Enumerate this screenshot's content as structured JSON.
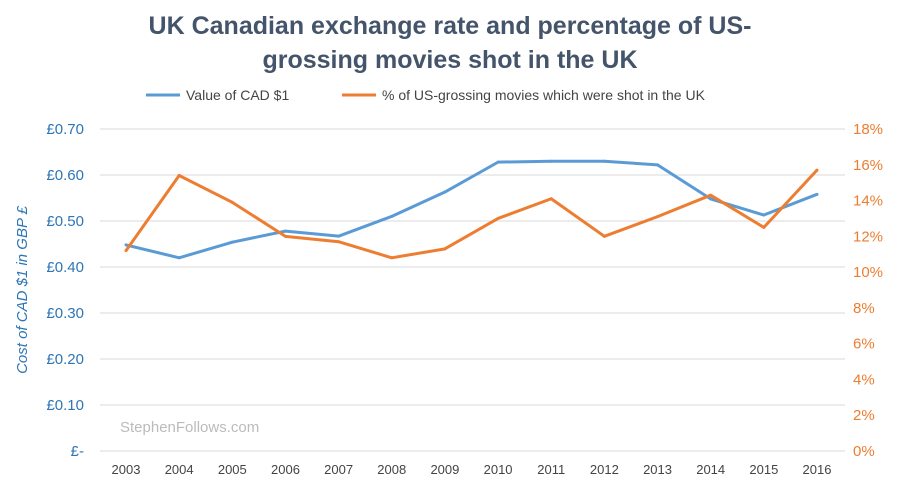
{
  "chart_data": {
    "type": "line",
    "title_lines": [
      "UK Canadian exchange rate and percentage of US-",
      "grossing movies shot in the UK"
    ],
    "categories": [
      "2003",
      "2004",
      "2005",
      "2006",
      "2007",
      "2008",
      "2009",
      "2010",
      "2011",
      "2012",
      "2013",
      "2014",
      "2015",
      "2016"
    ],
    "series": [
      {
        "name": "Value of CAD $1",
        "axis": "left",
        "color": "#5b9bd5",
        "values": [
          0.448,
          0.42,
          0.454,
          0.478,
          0.467,
          0.51,
          0.563,
          0.628,
          0.63,
          0.63,
          0.622,
          0.548,
          0.513,
          0.558
        ]
      },
      {
        "name": "% of US-grossing movies which were shot in the UK",
        "axis": "right",
        "color": "#ed7d31",
        "values": [
          11.2,
          15.4,
          13.9,
          12.0,
          11.7,
          10.8,
          11.3,
          13.0,
          14.1,
          12.0,
          13.1,
          14.3,
          12.5,
          15.7
        ]
      }
    ],
    "ylabel": "Cost of CAD $1 in GBP £",
    "ylim": [
      0,
      0.7
    ],
    "y_ticks": [
      "£-",
      "£0.10",
      "£0.20",
      "£0.30",
      "£0.40",
      "£0.50",
      "£0.60",
      "£0.70"
    ],
    "y2lim": [
      0,
      18
    ],
    "y2_ticks": [
      "0%",
      "2%",
      "4%",
      "6%",
      "8%",
      "10%",
      "12%",
      "14%",
      "16%",
      "18%"
    ],
    "grid": true,
    "legend_position": "top",
    "watermark": "StephenFollows.com"
  }
}
